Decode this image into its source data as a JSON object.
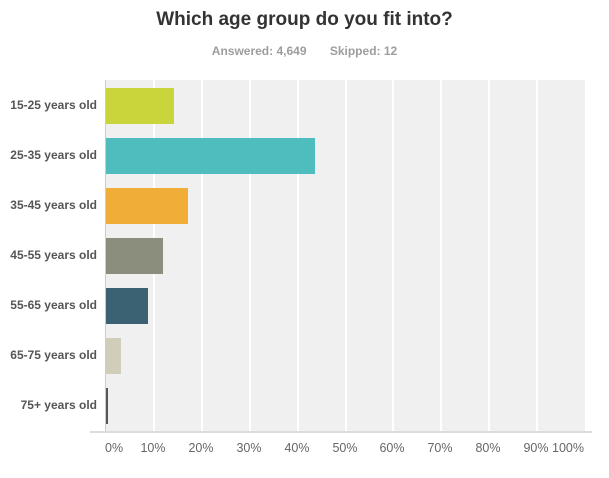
{
  "header": {
    "title": "Which age group do you fit into?",
    "answered": "Answered: 4,649",
    "skipped": "Skipped: 12"
  },
  "chart_data": {
    "type": "bar",
    "orientation": "horizontal",
    "title": "Which age group do you fit into?",
    "answered_count": "4,649",
    "skipped_count": "12",
    "categories": [
      "15-25 years old",
      "25-35 years old",
      "35-45 years old",
      "45-55 years old",
      "55-65 years old",
      "65-75 years old",
      "75+ years old"
    ],
    "values": [
      14.2,
      43.7,
      17.2,
      12.0,
      8.7,
      3.2,
      0.4
    ],
    "value_unit": "percent",
    "xlim": [
      0,
      100
    ],
    "x_tick_labels": [
      "0%",
      "10%",
      "20%",
      "30%",
      "40%",
      "50%",
      "60%",
      "70%",
      "80%",
      "90%",
      "100%"
    ],
    "bar_colors": [
      "#c9d53b",
      "#4fbdbe",
      "#f0ae39",
      "#8b8e7d",
      "#3b6272",
      "#d0cdba",
      "#55584e"
    ],
    "grid": true,
    "legend": false,
    "colors": {
      "plot_background": "#f0f0f0",
      "gridline": "#ffffff",
      "axis_line": "#cccccc",
      "bottom_axis_line": "#dcdcdc",
      "title_text": "#333333",
      "subtitle_text": "#9d9d9d",
      "category_label_text": "#555558",
      "tick_label_text": "#666666"
    }
  }
}
